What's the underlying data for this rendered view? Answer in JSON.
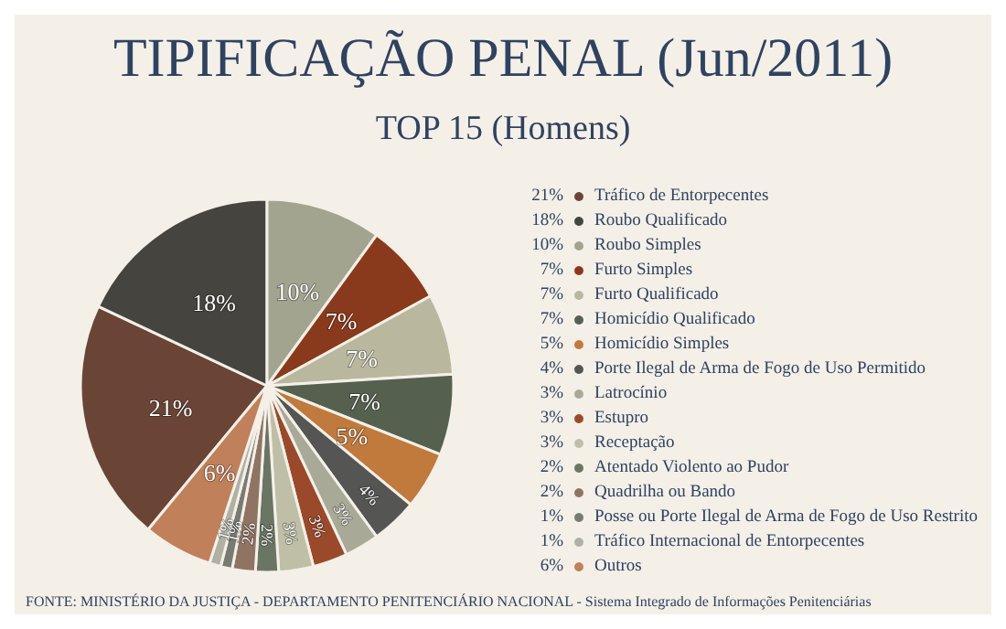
{
  "chart_data": {
    "type": "pie",
    "title": "TIPIFICAÇÃO PENAL (Jun/2011)",
    "subtitle": "TOP 15 (Homens)",
    "categories": [
      "Tráfico de Entorpecentes",
      "Roubo Qualificado",
      "Roubo Simples",
      "Furto Simples",
      "Furto Qualificado",
      "Homicídio Qualificado",
      "Homicídio Simples",
      "Porte Ilegal de Arma de Fogo de Uso Permitido",
      "Latrocínio",
      "Estupro",
      "Receptação",
      "Atentado Violento ao Pudor",
      "Quadrilha ou Bando",
      "Posse ou Porte Ilegal de Arma de Fogo de Uso Restrito",
      "Tráfico Internacional de Entorpecentes",
      "Outros"
    ],
    "values": [
      21,
      18,
      10,
      7,
      7,
      7,
      5,
      4,
      3,
      3,
      3,
      2,
      2,
      1,
      1,
      6
    ],
    "value_labels": [
      "21%",
      "18%",
      "10%",
      "7%",
      "7%",
      "7%",
      "5%",
      "4%",
      "3%",
      "3%",
      "3%",
      "2%",
      "2%",
      "1%",
      "1%",
      "6%"
    ],
    "colors": [
      "#6a4536",
      "#45443f",
      "#a3a490",
      "#8a3a1c",
      "#b9b89e",
      "#56604f",
      "#c07a3c",
      "#555553",
      "#a9a998",
      "#9a4a2a",
      "#bfbfa8",
      "#6b7564",
      "#8f7464",
      "#7a7a74",
      "#b0b0a4",
      "#c0805a"
    ],
    "legend": "right",
    "annotations": [
      "FONTE: MINISTÉRIO DA JUSTIÇA - DEPARTAMENTO PENITENCIÁRIO NACIONAL - Sistema Integrado de Informações Penitenciárias"
    ]
  }
}
